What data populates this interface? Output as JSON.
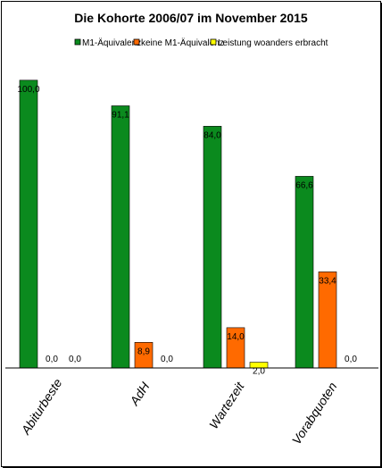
{
  "chart_data": {
    "type": "bar",
    "title": "Die Kohorte 2006/07 im November 2015",
    "categories": [
      "Abiturbeste",
      "AdH",
      "Wartezeit",
      "Vorabquoten"
    ],
    "series": [
      {
        "name": "M1-Äquivalenz",
        "color": "#0b8a1e",
        "values": [
          100.0,
          91.1,
          84.0,
          66.6
        ],
        "labels": [
          "100,0",
          "91,1",
          "84,0",
          "66,6"
        ]
      },
      {
        "name": "keine M1-Äquivalenz",
        "color": "#ff6a00",
        "values": [
          0.0,
          8.9,
          14.0,
          33.4
        ],
        "labels": [
          "0,0",
          "8,9",
          "14,0",
          "33,4"
        ]
      },
      {
        "name": "Leistung woanders erbracht",
        "color": "#ffff00",
        "values": [
          0.0,
          0.0,
          2.0,
          0.0
        ],
        "labels": [
          "0,0",
          "0,0",
          "2,0",
          "0,0"
        ]
      }
    ],
    "ylim": [
      0,
      105
    ],
    "legend_position": "top",
    "grid": false
  }
}
